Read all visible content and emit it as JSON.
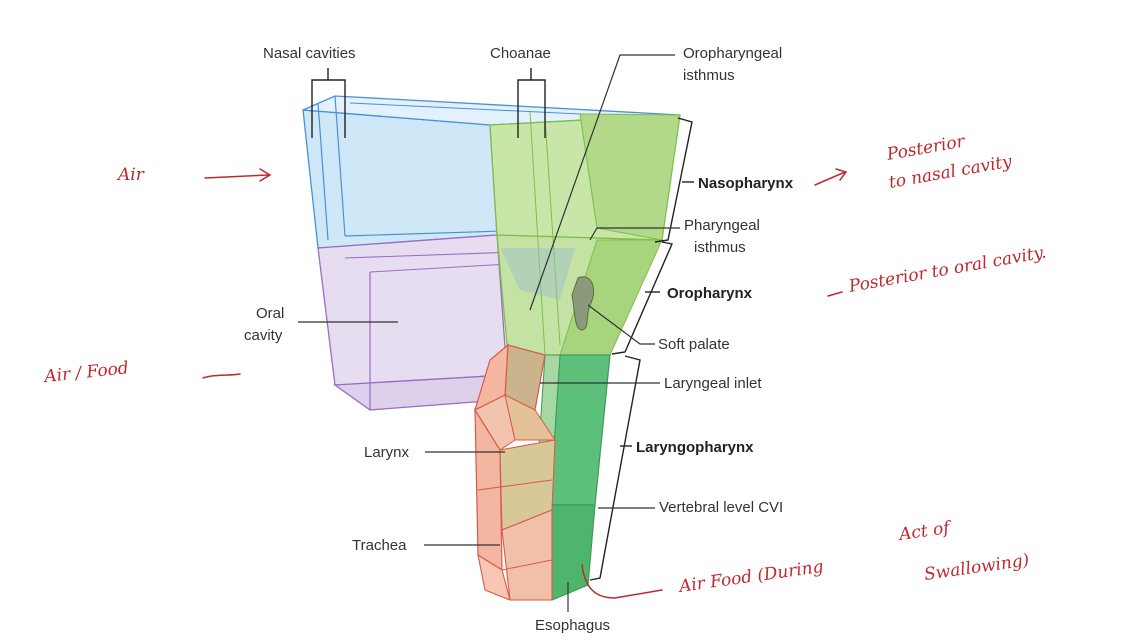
{
  "labels": {
    "nasal_cavities": "Nasal cavities",
    "choanae": "Choanae",
    "oropharyngeal_isthmus_1": "Oropharyngeal",
    "oropharyngeal_isthmus_2": "isthmus",
    "nasopharynx": "Nasopharynx",
    "pharyngeal_isthmus_1": "Pharyngeal",
    "pharyngeal_isthmus_2": "isthmus",
    "oral_cavity_1": "Oral",
    "oral_cavity_2": "cavity",
    "oropharynx": "Oropharynx",
    "soft_palate": "Soft palate",
    "laryngeal_inlet": "Laryngeal inlet",
    "larynx": "Larynx",
    "laryngopharynx": "Laryngopharynx",
    "vertebral_level": "Vertebral level CVI",
    "trachea": "Trachea",
    "esophagus": "Esophagus"
  },
  "annotations": {
    "air": "Air",
    "air_food": "Air / Food",
    "naso_note_1": "Posterior",
    "naso_note_2": "to nasal cavity",
    "oro_note": "Posterior to oral cavity.",
    "swallow_note_1": "Air Food (During",
    "swallow_note_2": "Act of",
    "swallow_note_3": "Swallowing)"
  },
  "colors": {
    "nasal": "#bfe0f5",
    "nasal_edge": "#4a90d9",
    "oral": "#ddd0ea",
    "oral_edge": "#9a6cc4",
    "pharynx": "#b9dc8e",
    "pharynx_edge": "#7fbf4a",
    "laryngopharynx": "#58bf78",
    "larynx": "#f3b6a0",
    "larynx_edge": "#d95a4a",
    "ink": "#c0282f"
  }
}
